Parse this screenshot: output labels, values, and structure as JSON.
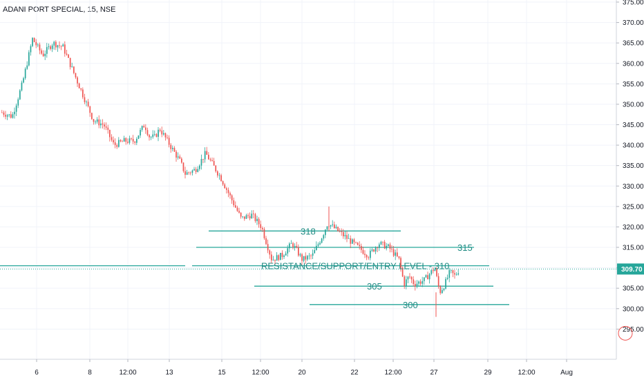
{
  "header": {
    "title": "ADANI PORT SPECIAL, 15, NSE"
  },
  "colors": {
    "up": "#26a69a",
    "down": "#ef5350",
    "level": "#26a69a",
    "price_tag": "#26a69a",
    "grid": "#f0f3fa"
  },
  "chart_data": {
    "type": "candlestick",
    "title": "ADANI PORT SPECIAL, 15, NSE",
    "ylim": [
      291,
      375
    ],
    "y_ticks": [
      "295.00",
      "300.00",
      "305.00",
      "310.00",
      "315.00",
      "320.00",
      "325.00",
      "330.00",
      "335.00",
      "340.00",
      "345.00",
      "350.00",
      "355.00",
      "360.00",
      "365.00",
      "370.00",
      "375.00"
    ],
    "x_ticks": [
      "6",
      "8",
      "12:00",
      "13",
      "15",
      "12:00",
      "20",
      "22",
      "12:00",
      "27",
      "29",
      "12:00",
      "Aug"
    ],
    "last_price": "309.70",
    "price_path": [
      [
        0,
        348
      ],
      [
        2,
        347
      ],
      [
        4,
        355
      ],
      [
        6,
        366
      ],
      [
        8,
        362
      ],
      [
        10,
        365
      ],
      [
        12,
        364
      ],
      [
        14,
        358
      ],
      [
        16,
        352
      ],
      [
        18,
        346
      ],
      [
        20,
        345
      ],
      [
        22,
        340
      ],
      [
        24,
        341
      ],
      [
        26,
        341
      ],
      [
        28,
        345
      ],
      [
        29,
        342
      ],
      [
        30,
        342
      ],
      [
        31,
        344
      ],
      [
        33,
        340
      ],
      [
        35,
        336
      ],
      [
        36,
        333
      ],
      [
        38,
        334
      ],
      [
        40,
        338
      ],
      [
        41,
        336
      ],
      [
        43,
        332
      ],
      [
        45,
        327
      ],
      [
        47,
        322
      ],
      [
        49,
        323
      ],
      [
        51,
        320
      ],
      [
        53,
        312
      ],
      [
        55,
        313
      ],
      [
        57,
        316
      ],
      [
        59,
        312
      ],
      [
        61,
        313
      ],
      [
        63,
        318
      ],
      [
        64,
        321
      ],
      [
        66,
        319
      ],
      [
        68,
        317
      ],
      [
        70,
        315
      ],
      [
        72,
        313
      ],
      [
        74,
        316
      ],
      [
        76,
        315
      ],
      [
        78,
        312
      ],
      [
        79,
        306
      ],
      [
        80,
        308
      ],
      [
        81,
        306
      ],
      [
        83,
        307
      ],
      [
        85,
        310
      ],
      [
        86,
        304
      ],
      [
        87,
        306
      ],
      [
        88,
        309
      ],
      [
        89,
        308
      ],
      [
        90,
        310
      ]
    ],
    "levels": [
      {
        "label": "318",
        "value": 319
      },
      {
        "label": "315",
        "value": 315
      },
      {
        "label": "RESISTANCE/SUPPORT/ENTRY LEVEL - 310",
        "value": 310.5
      },
      {
        "label": "305",
        "value": 305.5
      },
      {
        "label": "300",
        "value": 301
      }
    ]
  }
}
